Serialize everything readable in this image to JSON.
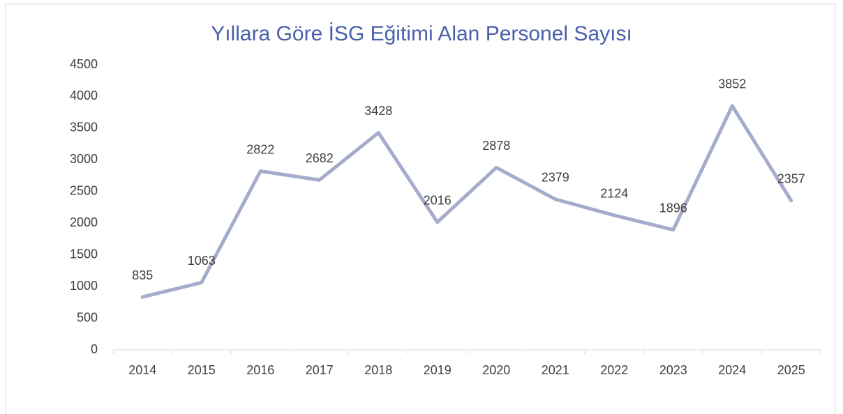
{
  "chart_data": {
    "type": "line",
    "title": "Yıllara Göre İSG Eğitimi Alan Personel Sayısı",
    "categories": [
      "2014",
      "2015",
      "2016",
      "2017",
      "2018",
      "2019",
      "2020",
      "2021",
      "2022",
      "2023",
      "2024",
      "2025"
    ],
    "values": [
      835,
      1063,
      2822,
      2682,
      3428,
      2016,
      2878,
      2379,
      2124,
      1896,
      3852,
      2357
    ],
    "color": "#a5abca",
    "ylim": [
      0,
      4500
    ],
    "yticks": [
      0,
      500,
      1000,
      1500,
      2000,
      2500,
      3000,
      3500,
      4000,
      4500
    ],
    "grid": false,
    "data_labels": true
  }
}
